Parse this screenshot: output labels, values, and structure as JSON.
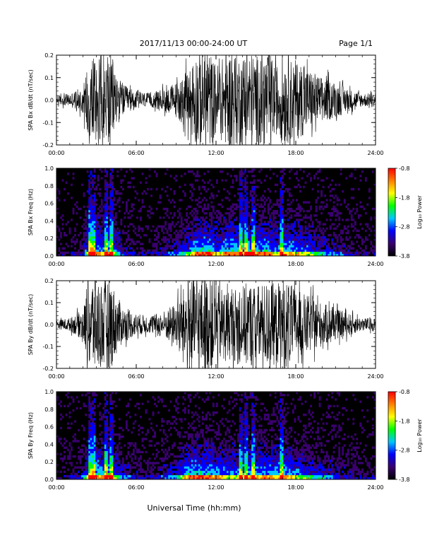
{
  "header": {
    "title": "2017/11/13  00:00-24:00 UT",
    "page": "Page 1/1"
  },
  "footer": {
    "xlabel": "Universal Time (hh:mm)"
  },
  "chart_data": [
    {
      "type": "line",
      "ylabel": "SPA Bx dB/dt (nT/sec)",
      "xlim": [
        0,
        24
      ],
      "ylim": [
        -0.2,
        0.2
      ],
      "x_ticks": [
        "00:00",
        "06:00",
        "12:00",
        "18:00",
        "24:00"
      ],
      "y_ticks": [
        "-0.2",
        "-0.1",
        "0.0",
        "0.1",
        "0.2"
      ],
      "series": [
        {
          "x": [
            0,
            1,
            2,
            2.5,
            3,
            3.5,
            4,
            4.5,
            5,
            6,
            7,
            8,
            9,
            10,
            10.5,
            11,
            11.5,
            12,
            13,
            14,
            14.5,
            15,
            16,
            16.5,
            17,
            18,
            19,
            20,
            21,
            22,
            23,
            24
          ],
          "amplitude": [
            0.02,
            0.03,
            0.06,
            0.22,
            0.22,
            0.15,
            0.22,
            0.12,
            0.07,
            0.04,
            0.03,
            0.05,
            0.08,
            0.14,
            0.22,
            0.22,
            0.22,
            0.16,
            0.22,
            0.2,
            0.22,
            0.2,
            0.22,
            0.15,
            0.2,
            0.18,
            0.14,
            0.1,
            0.08,
            0.05,
            0.03,
            0.03
          ]
        }
      ]
    },
    {
      "type": "heatmap",
      "ylabel": "SPA Bx Freq (Hz)",
      "xlim": [
        0,
        24
      ],
      "ylim": [
        0,
        1
      ],
      "x_ticks": [
        "00:00",
        "06:00",
        "12:00",
        "18:00",
        "24:00"
      ],
      "y_ticks": [
        "0.0",
        "0.2",
        "0.4",
        "0.6",
        "0.8",
        "1.0"
      ],
      "colorbar": {
        "label": "Log₁₀ Power",
        "range": [
          -3.8,
          -0.8
        ],
        "ticks": [
          "-0.8",
          "-1.8",
          "-2.8",
          "-3.8"
        ]
      },
      "colors": [
        "#000000",
        "#3a0070",
        "#0000ff",
        "#00c8ff",
        "#00ff00",
        "#ffff00",
        "#ff8000",
        "#ff0000"
      ],
      "bright_columns_hours": [
        2.5,
        2.8,
        3.7,
        4.1,
        13.9,
        14.3,
        14.8,
        16.9
      ]
    },
    {
      "type": "line",
      "ylabel": "SPA By dB/dt (nT/sec)",
      "xlim": [
        0,
        24
      ],
      "ylim": [
        -0.2,
        0.2
      ],
      "x_ticks": [
        "00:00",
        "06:00",
        "12:00",
        "18:00",
        "24:00"
      ],
      "y_ticks": [
        "-0.2",
        "-0.1",
        "0.0",
        "0.1",
        "0.2"
      ],
      "series": [
        {
          "x": [
            0,
            1,
            2,
            2.5,
            3,
            3.5,
            4,
            4.5,
            5,
            6,
            7,
            8,
            9,
            10,
            10.5,
            11,
            11.5,
            12,
            13,
            14,
            14.5,
            15,
            16,
            16.5,
            17,
            18,
            19,
            20,
            21,
            22,
            23,
            24
          ],
          "amplitude": [
            0.02,
            0.03,
            0.07,
            0.22,
            0.22,
            0.2,
            0.22,
            0.14,
            0.08,
            0.05,
            0.04,
            0.06,
            0.1,
            0.22,
            0.22,
            0.22,
            0.22,
            0.18,
            0.16,
            0.18,
            0.2,
            0.18,
            0.2,
            0.18,
            0.22,
            0.16,
            0.13,
            0.1,
            0.07,
            0.05,
            0.03,
            0.03
          ]
        }
      ]
    },
    {
      "type": "heatmap",
      "ylabel": "SPA By Freq (Hz)",
      "xlim": [
        0,
        24
      ],
      "ylim": [
        0,
        1
      ],
      "x_ticks": [
        "00:00",
        "06:00",
        "12:00",
        "18:00",
        "24:00"
      ],
      "y_ticks": [
        "0.0",
        "0.2",
        "0.4",
        "0.6",
        "0.8",
        "1.0"
      ],
      "colorbar": {
        "label": "Log₁₀ Power",
        "range": [
          -3.8,
          -0.8
        ],
        "ticks": [
          "-0.8",
          "-1.8",
          "-2.8",
          "-3.8"
        ]
      },
      "colors": [
        "#000000",
        "#3a0070",
        "#0000ff",
        "#00c8ff",
        "#00ff00",
        "#ffff00",
        "#ff8000",
        "#ff0000"
      ],
      "bright_columns_hours": [
        2.5,
        2.8,
        3.7,
        4.1,
        13.9,
        14.3,
        14.8,
        16.9
      ]
    }
  ]
}
